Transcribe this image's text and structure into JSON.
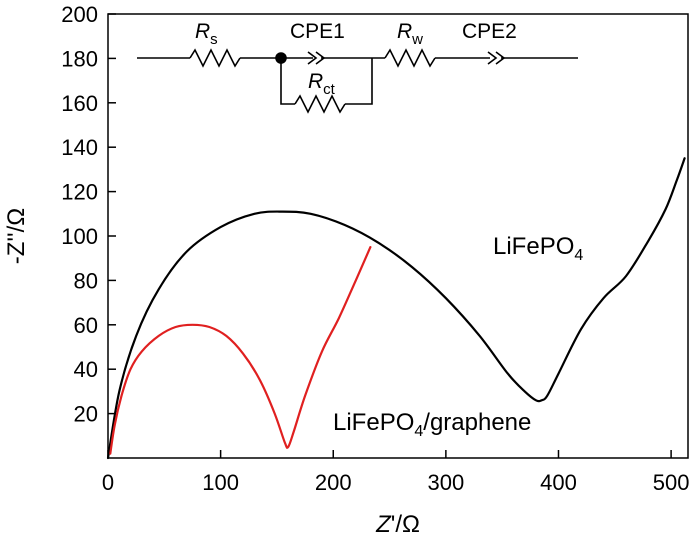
{
  "chart_data": {
    "type": "line",
    "title": "",
    "xlabel": {
      "italic": "Z",
      "rest": "'/Ω"
    },
    "ylabel": "-Z''/Ω",
    "xlim": [
      0,
      515
    ],
    "ylim": [
      0,
      200
    ],
    "xticks": [
      0,
      100,
      200,
      300,
      400,
      500
    ],
    "yticks": [
      20,
      40,
      60,
      80,
      100,
      120,
      140,
      160,
      180,
      200
    ],
    "grid": false,
    "series": [
      {
        "name": "LiFePO4",
        "label_main": "LiFePO",
        "label_sub": "4",
        "label_suffix": "",
        "color": "#000000",
        "x": [
          0,
          10,
          25,
          45,
          70,
          100,
          130,
          155,
          180,
          210,
          240,
          270,
          300,
          330,
          355,
          370,
          380,
          385,
          390,
          400,
          420,
          440,
          460,
          480,
          495,
          505,
          512
        ],
        "y": [
          0,
          30,
          55,
          76,
          93,
          104,
          110,
          111,
          110,
          105,
          97,
          86,
          72,
          55,
          38,
          30,
          26,
          26,
          28,
          38,
          58,
          72,
          82,
          98,
          112,
          125,
          135
        ]
      },
      {
        "name": "LiFePO4/graphene",
        "label_main": "LiFePO",
        "label_sub": "4",
        "label_suffix": "/graphene",
        "color": "#e02020",
        "x": [
          2,
          6,
          12,
          20,
          30,
          45,
          60,
          75,
          90,
          105,
          120,
          135,
          148,
          157,
          160,
          165,
          175,
          190,
          205,
          220,
          233
        ],
        "y": [
          2,
          15,
          28,
          40,
          48,
          55,
          59,
          60,
          59,
          55,
          47,
          35,
          20,
          7,
          5,
          12,
          28,
          48,
          63,
          80,
          95
        ]
      }
    ],
    "circuit": {
      "elements": [
        {
          "main": "R",
          "sub": "s"
        },
        {
          "main": "CPE1",
          "sub": ""
        },
        {
          "main": "R",
          "sub": "w"
        },
        {
          "main": "CPE2",
          "sub": ""
        },
        {
          "main": "R",
          "sub": "ct"
        }
      ]
    }
  }
}
